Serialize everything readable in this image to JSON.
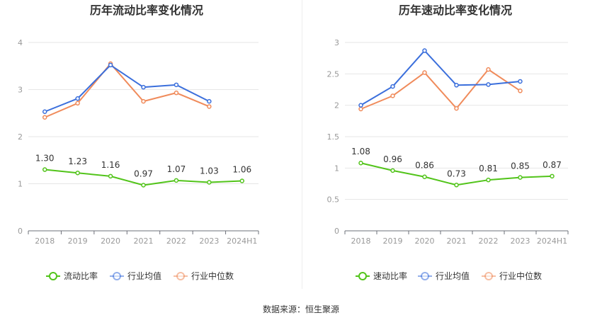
{
  "source_label": "数据来源：恒生聚源",
  "colors": {
    "main": "#52c41a",
    "industry_avg": "#3b6fdc",
    "industry_median": "#f08b5b",
    "grid": "#e6e6e6",
    "axis": "#999999"
  },
  "chart_data": [
    {
      "type": "line",
      "title": "历年流动比率变化情况",
      "categories": [
        "2018",
        "2019",
        "2020",
        "2021",
        "2022",
        "2023",
        "2024H1"
      ],
      "ylim": [
        0,
        4
      ],
      "yticks": [
        "0",
        "1",
        "2",
        "3",
        "4"
      ],
      "grid": true,
      "legend_position": "bottom",
      "series": [
        {
          "name": "流动比率",
          "values": [
            1.3,
            1.23,
            1.16,
            0.97,
            1.07,
            1.03,
            1.06
          ],
          "labels": [
            "1.30",
            "1.23",
            "1.16",
            "0.97",
            "1.07",
            "1.03",
            "1.06"
          ]
        },
        {
          "name": "行业均值",
          "values": [
            2.53,
            2.81,
            3.52,
            3.05,
            3.1,
            2.75,
            null
          ]
        },
        {
          "name": "行业中位数",
          "values": [
            2.41,
            2.71,
            3.55,
            2.75,
            2.93,
            2.64,
            null
          ]
        }
      ]
    },
    {
      "type": "line",
      "title": "历年速动比率变化情况",
      "categories": [
        "2018",
        "2019",
        "2020",
        "2021",
        "2022",
        "2023",
        "2024H1"
      ],
      "ylim": [
        0,
        3
      ],
      "yticks": [
        "0",
        "0.5",
        "1",
        "1.5",
        "2",
        "2.5",
        "3"
      ],
      "grid": true,
      "legend_position": "bottom",
      "series": [
        {
          "name": "速动比率",
          "values": [
            1.08,
            0.96,
            0.86,
            0.73,
            0.81,
            0.85,
            0.87
          ],
          "labels": [
            "1.08",
            "0.96",
            "0.86",
            "0.73",
            "0.81",
            "0.85",
            "0.87"
          ]
        },
        {
          "name": "行业均值",
          "values": [
            2.0,
            2.3,
            2.87,
            2.32,
            2.33,
            2.38,
            null
          ]
        },
        {
          "name": "行业中位数",
          "values": [
            1.94,
            2.15,
            2.52,
            1.95,
            2.57,
            2.23,
            null
          ]
        }
      ]
    }
  ]
}
